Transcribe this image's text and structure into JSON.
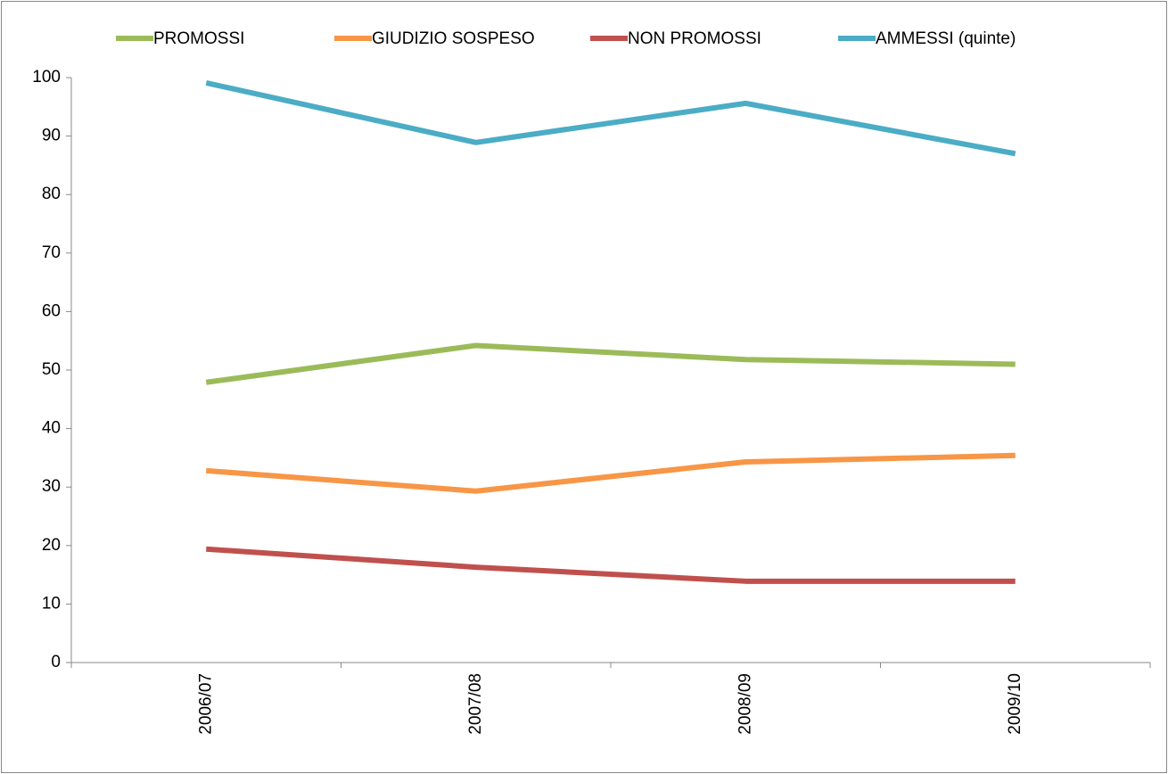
{
  "chart_data": {
    "type": "line",
    "categories": [
      "2006/07",
      "2007/08",
      "2008/09",
      "2009/10"
    ],
    "series": [
      {
        "name": "PROMOSSI",
        "color": "#9bbb59",
        "values": [
          47.9,
          54.2,
          51.8,
          51.0
        ]
      },
      {
        "name": "GIUDIZIO SOSPESO",
        "color": "#f79646",
        "values": [
          32.8,
          29.3,
          34.3,
          35.4
        ]
      },
      {
        "name": "NON PROMOSSI",
        "color": "#c0504d",
        "values": [
          19.4,
          16.3,
          13.9,
          13.9
        ]
      },
      {
        "name": "AMMESSI (quinte)",
        "color": "#4bacc6",
        "values": [
          99.1,
          88.9,
          95.6,
          87.0
        ]
      }
    ],
    "ylim": [
      0,
      100
    ],
    "yticks": [
      0,
      10,
      20,
      30,
      40,
      50,
      60,
      70,
      80,
      90,
      100
    ],
    "grid": false,
    "legend": "top"
  }
}
